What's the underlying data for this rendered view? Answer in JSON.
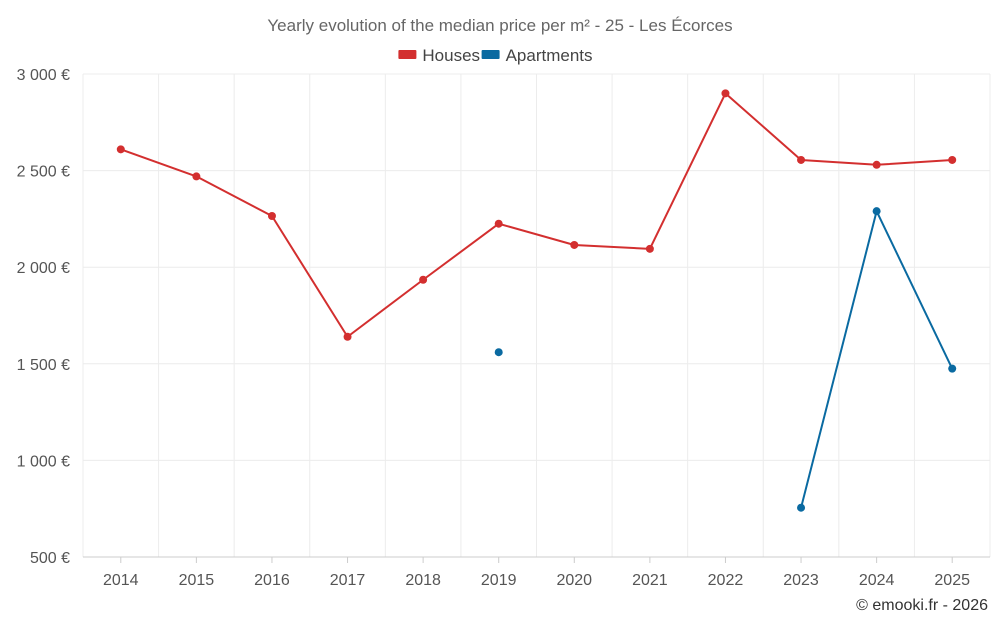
{
  "chart_data": {
    "type": "line",
    "title": "Yearly evolution of the median price per m² - 25 - Les Écorces",
    "categories": [
      "2014",
      "2015",
      "2016",
      "2017",
      "2018",
      "2019",
      "2020",
      "2021",
      "2022",
      "2023",
      "2024",
      "2025"
    ],
    "ylim": [
      500,
      3000
    ],
    "yticks": [
      500,
      1000,
      1500,
      2000,
      2500,
      3000
    ],
    "ytick_labels": [
      "500 €",
      "1 000 €",
      "1 500 €",
      "2 000 €",
      "2 500 €",
      "3 000 €"
    ],
    "grid": true,
    "legend_position": "top-center",
    "series": [
      {
        "name": "Houses",
        "color": "#d32f2f",
        "values": [
          2610,
          2470,
          2265,
          1640,
          1935,
          2225,
          2115,
          2095,
          2900,
          2555,
          2530,
          2555
        ]
      },
      {
        "name": "Apartments",
        "color": "#0a6aa1",
        "values": [
          null,
          null,
          null,
          null,
          null,
          1560,
          null,
          null,
          null,
          755,
          2290,
          1475
        ]
      }
    ]
  },
  "credit": "© emooki.fr - 2026"
}
